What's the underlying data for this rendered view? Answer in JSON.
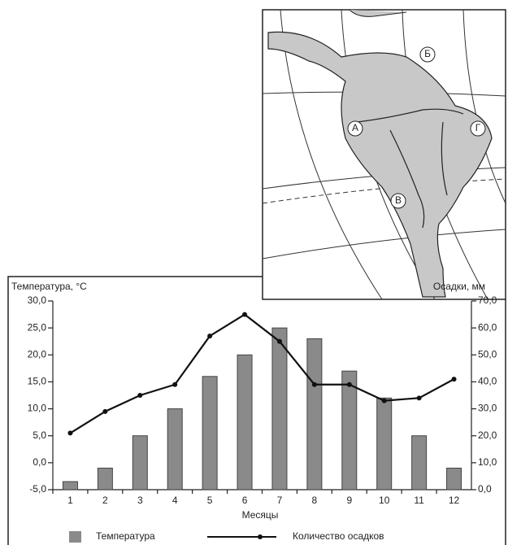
{
  "chart_data": {
    "type": "combo",
    "y_label": "Температура, °С",
    "y2_label": "Осадки, мм",
    "x_label": "Месяцы",
    "categories": [
      "1",
      "2",
      "3",
      "4",
      "5",
      "6",
      "7",
      "8",
      "9",
      "10",
      "11",
      "12"
    ],
    "series": [
      {
        "name": "Температура",
        "type": "bar",
        "color": "#8a8a8a",
        "values": [
          -3.5,
          -1,
          5,
          10,
          16,
          20,
          25,
          23,
          17,
          12,
          5,
          -1
        ]
      },
      {
        "name": "Количество осадков",
        "type": "line",
        "color": "#111111",
        "axis": "y2",
        "values": [
          21,
          29,
          35,
          39,
          57,
          65,
          55,
          39,
          39,
          33,
          34,
          41
        ]
      }
    ],
    "ylim": [
      -5,
      30
    ],
    "yticks": [
      {
        "value": -5,
        "label": "-5,0"
      },
      {
        "value": 0,
        "label": "0,0"
      },
      {
        "value": 5,
        "label": "5,0"
      },
      {
        "value": 10,
        "label": "10,0"
      },
      {
        "value": 15,
        "label": "15,0"
      },
      {
        "value": 20,
        "label": "20,0"
      },
      {
        "value": 25,
        "label": "25,0"
      },
      {
        "value": 30,
        "label": "30,0"
      }
    ],
    "y2lim": [
      0,
      70
    ],
    "y2ticks": [
      {
        "value": 0,
        "label": "0,0"
      },
      {
        "value": 10,
        "label": "10,0"
      },
      {
        "value": 20,
        "label": "20,0"
      },
      {
        "value": 30,
        "label": "30,0"
      },
      {
        "value": 40,
        "label": "40,0"
      },
      {
        "value": 50,
        "label": "50,0"
      },
      {
        "value": 60,
        "label": "60,0"
      },
      {
        "value": 70,
        "label": "70,0"
      }
    ],
    "legend": "bottom"
  },
  "map": {
    "labels": [
      "Б",
      "А",
      "Г",
      "В"
    ]
  }
}
